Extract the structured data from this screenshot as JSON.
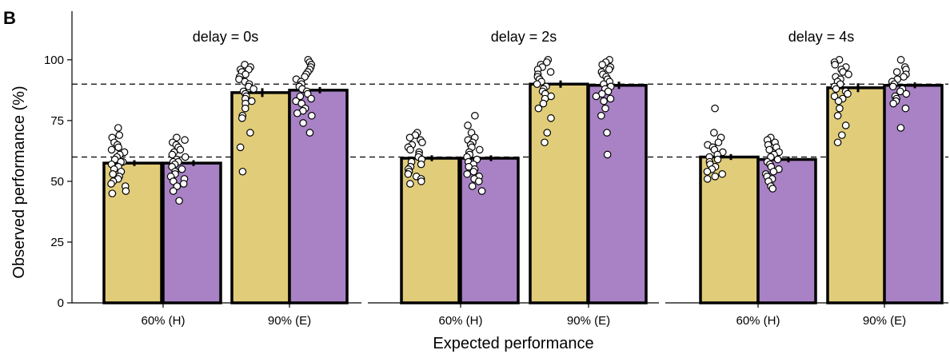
{
  "figure": {
    "panel_letter": "B"
  },
  "chart_data": {
    "type": "bar",
    "ylabel": "Observed performance (%)",
    "xlabel": "Expected performance",
    "categories": [
      "60% (H)",
      "90% (E)"
    ],
    "ylim": [
      0,
      120
    ],
    "yticks": [
      0,
      25,
      50,
      75,
      100
    ],
    "reference_lines": [
      60,
      90
    ],
    "colors": {
      "series_a": "#e1cc79",
      "series_b": "#a882c4",
      "edge": "#000000"
    },
    "panels": [
      {
        "title": "delay = 0s",
        "bars": [
          {
            "category": "60% (H)",
            "series": 0,
            "mean": 57.5,
            "sem": 1.2,
            "points": [
              72,
              69,
              68,
              66,
              65,
              64,
              63,
              62,
              61,
              60,
              59,
              58,
              58,
              57,
              56,
              55,
              54,
              53,
              52,
              51,
              50,
              49,
              48,
              46,
              45
            ]
          },
          {
            "category": "60% (H)",
            "series": 1,
            "mean": 57.5,
            "sem": 1.2,
            "points": [
              68,
              67,
              66,
              65,
              64,
              63,
              62,
              61,
              60,
              59,
              58,
              58,
              57,
              56,
              55,
              54,
              53,
              52,
              51,
              50,
              49,
              48,
              46,
              42
            ]
          },
          {
            "category": "90% (E)",
            "series": 0,
            "mean": 86.5,
            "sem": 1.8,
            "points": [
              98,
              97,
              96,
              96,
              95,
              94,
              93,
              92,
              91,
              90,
              89,
              88,
              87,
              86,
              85,
              84,
              83,
              82,
              80,
              77,
              76,
              70,
              64,
              54
            ]
          },
          {
            "category": "90% (E)",
            "series": 1,
            "mean": 87.5,
            "sem": 1.3,
            "points": [
              100,
              99,
              98,
              97,
              96,
              95,
              94,
              93,
              92,
              91,
              90,
              89,
              88,
              87,
              86,
              85,
              84,
              83,
              82,
              80,
              79,
              78,
              77,
              74,
              70
            ]
          }
        ]
      },
      {
        "title": "delay = 2s",
        "bars": [
          {
            "category": "60% (H)",
            "series": 0,
            "mean": 59.5,
            "sem": 1.2,
            "points": [
              70,
              69,
              68,
              67,
              66,
              65,
              64,
              63,
              62,
              61,
              60,
              59,
              58,
              57,
              56,
              55,
              54,
              53,
              52,
              51,
              50,
              49
            ]
          },
          {
            "category": "60% (H)",
            "series": 1,
            "mean": 59.5,
            "sem": 1.2,
            "points": [
              77,
              73,
              70,
              68,
              67,
              66,
              65,
              64,
              63,
              62,
              61,
              60,
              59,
              58,
              57,
              56,
              55,
              54,
              53,
              52,
              51,
              50,
              48,
              46
            ]
          },
          {
            "category": "90% (E)",
            "series": 0,
            "mean": 90,
            "sem": 1.5,
            "points": [
              100,
              99,
              98,
              97,
              96,
              95,
              94,
              93,
              92,
              91,
              90,
              89,
              88,
              87,
              86,
              85,
              84,
              82,
              80,
              76,
              70,
              66
            ]
          },
          {
            "category": "90% (E)",
            "series": 1,
            "mean": 89.5,
            "sem": 1.5,
            "points": [
              100,
              99,
              98,
              97,
              96,
              95,
              94,
              93,
              92,
              91,
              90,
              89,
              88,
              87,
              86,
              85,
              84,
              83,
              80,
              77,
              70,
              61
            ]
          }
        ]
      },
      {
        "title": "delay = 4s",
        "bars": [
          {
            "category": "60% (H)",
            "series": 0,
            "mean": 60,
            "sem": 1.2,
            "points": [
              80,
              70,
              68,
              66,
              65,
              64,
              63,
              62,
              61,
              60,
              59,
              58,
              57,
              56,
              55,
              54,
              53,
              52,
              51
            ]
          },
          {
            "category": "60% (H)",
            "series": 1,
            "mean": 59,
            "sem": 1.2,
            "points": [
              68,
              67,
              66,
              65,
              64,
              63,
              62,
              61,
              60,
              59,
              58,
              57,
              56,
              55,
              54,
              53,
              52,
              51,
              50,
              48,
              47
            ]
          },
          {
            "category": "90% (E)",
            "series": 0,
            "mean": 88.5,
            "sem": 1.8,
            "points": [
              100,
              99,
              98,
              97,
              96,
              95,
              94,
              93,
              92,
              91,
              90,
              89,
              88,
              87,
              86,
              85,
              84,
              83,
              80,
              77,
              73,
              69,
              66
            ]
          },
          {
            "category": "90% (E)",
            "series": 1,
            "mean": 89.5,
            "sem": 1.2,
            "points": [
              100,
              97,
              96,
              95,
              94,
              93,
              92,
              91,
              90,
              89,
              88,
              87,
              86,
              85,
              84,
              83,
              82,
              80,
              72
            ]
          }
        ]
      }
    ]
  }
}
